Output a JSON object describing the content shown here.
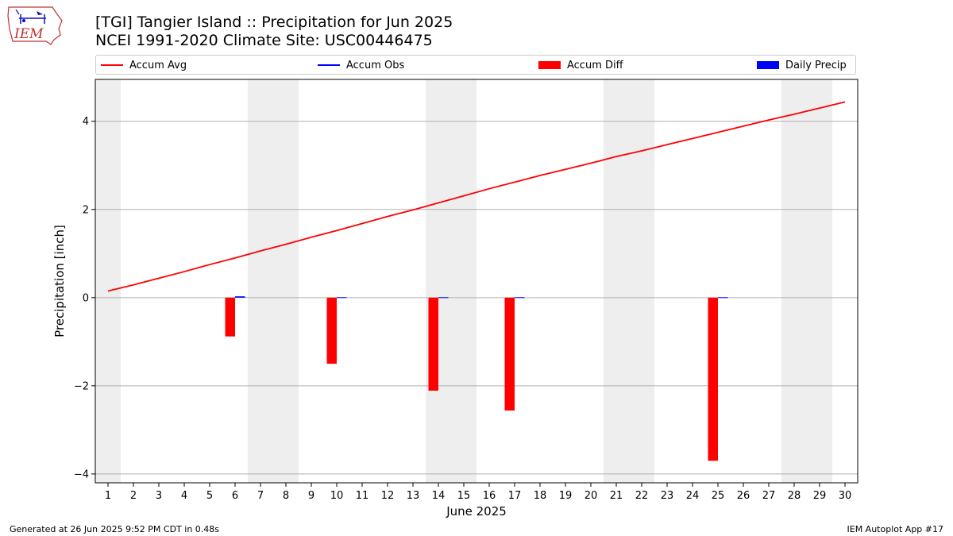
{
  "header": {
    "logo_text": "IEM",
    "title": "[TGI] Tangier Island :: Precipitation for Jun 2025",
    "subtitle": "NCEI 1991-2020 Climate Site: USC00446475"
  },
  "legend": [
    {
      "label": "Accum Avg",
      "kind": "line",
      "color": "#ff0000"
    },
    {
      "label": "Accum Obs",
      "kind": "line",
      "color": "#0000ff"
    },
    {
      "label": "Accum Diff",
      "kind": "box",
      "color": "#ff0000"
    },
    {
      "label": "Daily Precip",
      "kind": "box",
      "color": "#0000ff"
    }
  ],
  "footer": {
    "generated": "Generated at 26 Jun 2025 9:52 PM CDT in 0.48s",
    "app": "IEM Autoplot App #17"
  },
  "chart_data": {
    "type": "bar",
    "xlabel": "June 2025",
    "ylabel": "Precipitation [inch]",
    "ylim": [
      -4.2,
      4.95
    ],
    "yticks": [
      -4,
      -2,
      0,
      2,
      4
    ],
    "grid": "horizontal",
    "legend_position": "top",
    "days": [
      1,
      2,
      3,
      4,
      5,
      6,
      7,
      8,
      9,
      10,
      11,
      12,
      13,
      14,
      15,
      16,
      17,
      18,
      19,
      20,
      21,
      22,
      23,
      24,
      25,
      26,
      27,
      28,
      29,
      30
    ],
    "weekend_days": [
      1,
      7,
      8,
      14,
      15,
      21,
      22,
      28,
      29
    ],
    "series": [
      {
        "name": "Accum Avg",
        "type": "line",
        "color": "#ff0000",
        "values": [
          0.15,
          0.29,
          0.44,
          0.59,
          0.75,
          0.9,
          1.06,
          1.21,
          1.37,
          1.52,
          1.68,
          1.84,
          1.99,
          2.15,
          2.31,
          2.47,
          2.62,
          2.77,
          2.91,
          3.05,
          3.2,
          3.33,
          3.47,
          3.61,
          3.75,
          3.89,
          4.03,
          4.16,
          4.3,
          4.44
        ]
      },
      {
        "name": "Accum Diff",
        "type": "bar",
        "color": "#ff0000",
        "values": [
          null,
          null,
          null,
          null,
          null,
          -0.88,
          null,
          null,
          null,
          -1.5,
          null,
          null,
          null,
          -2.11,
          null,
          null,
          -2.56,
          null,
          null,
          null,
          null,
          null,
          null,
          null,
          -3.7,
          null,
          null,
          null,
          null,
          null
        ]
      },
      {
        "name": "Daily Precip",
        "type": "bar",
        "color": "#0000ff",
        "values": [
          null,
          null,
          null,
          null,
          null,
          0.03,
          null,
          null,
          null,
          0.01,
          null,
          null,
          null,
          0.01,
          null,
          null,
          0.01,
          null,
          null,
          null,
          null,
          null,
          null,
          null,
          0.01,
          null,
          null,
          null,
          null,
          null
        ]
      }
    ]
  }
}
